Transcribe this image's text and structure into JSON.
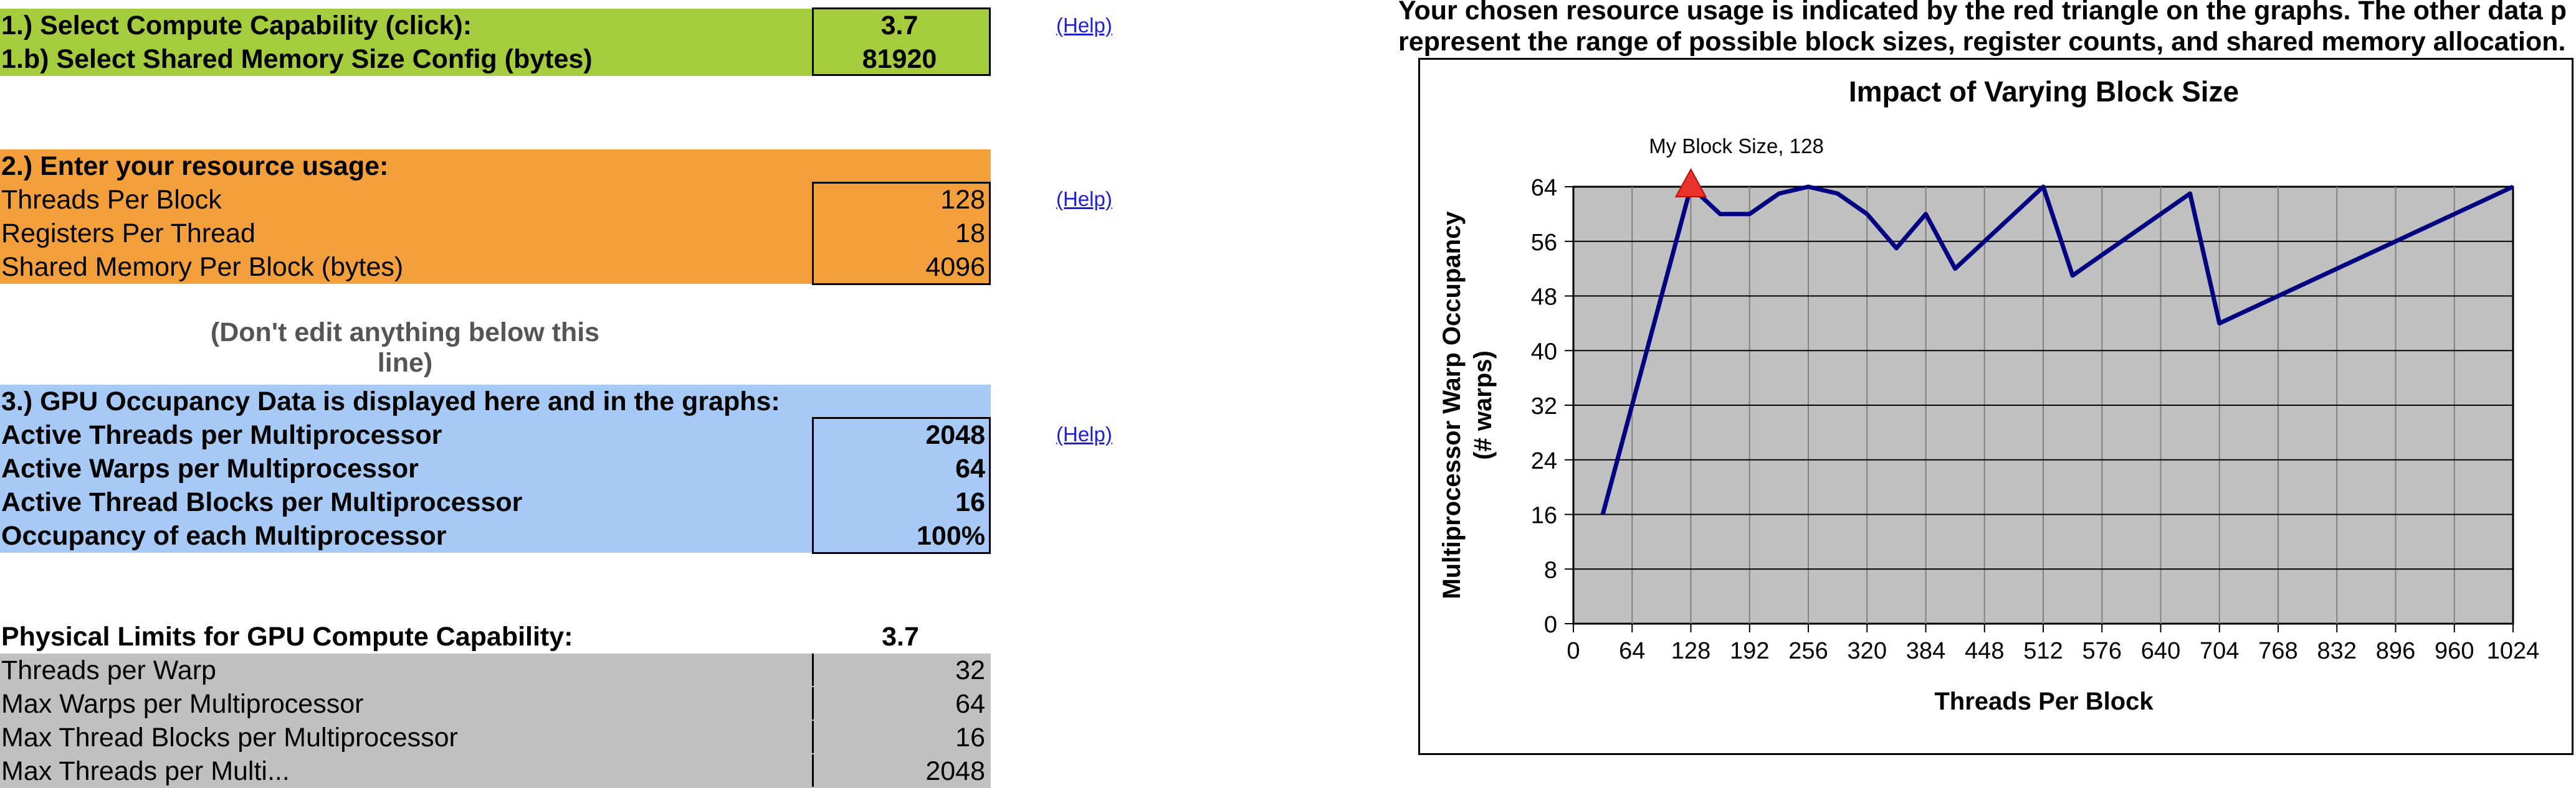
{
  "section1": {
    "select_cc_label": "1.) Select Compute Capability (click):",
    "select_cc_value": "3.7",
    "select_smem_label": "1.b) Select Shared Memory Size Config (bytes)",
    "select_smem_value": "81920",
    "help": "(Help)"
  },
  "section2": {
    "header": "2.) Enter your resource usage:",
    "threads_label": "Threads Per Block",
    "threads_value": "128",
    "regs_label": "Registers Per Thread",
    "regs_value": "18",
    "smem_label": "Shared Memory Per Block (bytes)",
    "smem_value": "4096",
    "help": "(Help)"
  },
  "note": "(Don't edit anything below this line)",
  "section3": {
    "header": "3.) GPU Occupancy Data is displayed here and in the graphs:",
    "rows": [
      {
        "label": "Active Threads per Multiprocessor",
        "value": "2048"
      },
      {
        "label": "Active Warps per Multiprocessor",
        "value": "64"
      },
      {
        "label": "Active Thread Blocks per Multiprocessor",
        "value": "16"
      },
      {
        "label": "Occupancy of each Multiprocessor",
        "value": "100%"
      }
    ],
    "help": "(Help)"
  },
  "limits": {
    "header": "Physical Limits for GPU Compute Capability:",
    "header_value": "3.7",
    "rows": [
      {
        "label": "Threads per Warp",
        "value": "32"
      },
      {
        "label": "Max Warps per Multiprocessor",
        "value": "64"
      },
      {
        "label": "Max Thread Blocks per Multiprocessor",
        "value": "16"
      },
      {
        "label": "Max Threads per Multi...",
        "value": "2048"
      }
    ]
  },
  "top_text": {
    "line1": "Your chosen resource usage is indicated by the red triangle on the graphs.  The other data p",
    "line2": "represent the range of possible block sizes, register counts, and shared memory allocation."
  },
  "colors": {
    "green": "#a4cc3d",
    "orange": "#f29f3c",
    "blue": "#a6c9f5",
    "gray": "#c0c0c0",
    "series": "#000080",
    "marker": "#e8322b"
  },
  "chart_data": {
    "type": "line",
    "title": "Impact of Varying Block Size",
    "xlabel": "Threads Per Block",
    "ylabel_line1": "Multiprocessor Warp Occupancy",
    "ylabel_line2": "(# warps)",
    "xlim": [
      0,
      1024
    ],
    "ylim": [
      0,
      64
    ],
    "xticks": [
      0,
      64,
      128,
      192,
      256,
      320,
      384,
      448,
      512,
      576,
      640,
      704,
      768,
      832,
      896,
      960,
      1024
    ],
    "yticks": [
      0,
      8,
      16,
      24,
      32,
      40,
      48,
      56,
      64
    ],
    "grid": true,
    "x": [
      32,
      128,
      160,
      192,
      224,
      256,
      288,
      320,
      352,
      384,
      416,
      512,
      544,
      672,
      704,
      1024
    ],
    "y": [
      16,
      64,
      60,
      60,
      63,
      64,
      63,
      60,
      55,
      60,
      52,
      64,
      51,
      63,
      44,
      64
    ],
    "marker": {
      "x": 128,
      "y": 64,
      "label": "My Block Size, 128"
    }
  }
}
